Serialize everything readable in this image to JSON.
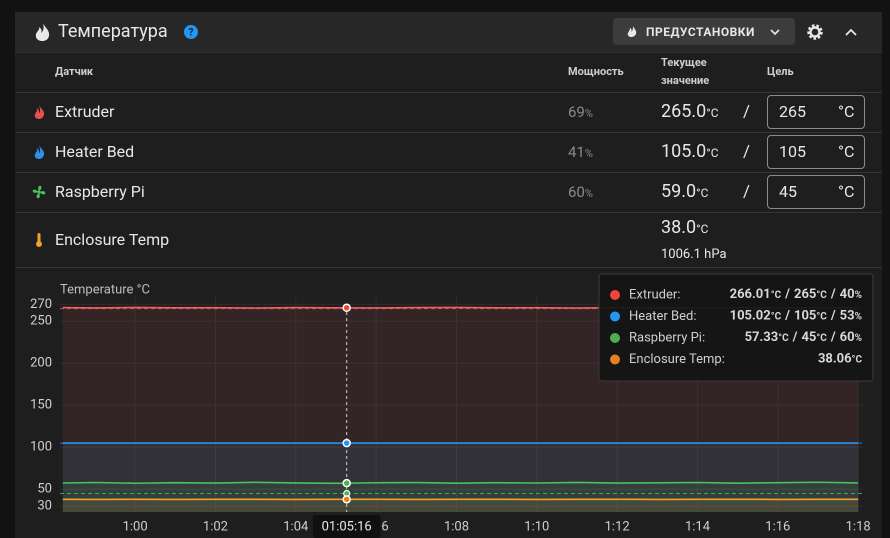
{
  "header": {
    "title": "Температура",
    "presets_button": "ПРЕДУСТАНОВКИ"
  },
  "table": {
    "columns": [
      "Датчик",
      "Мощность",
      "Текущее",
      "значение",
      "Цель"
    ],
    "separator": "/",
    "rows": [
      {
        "name": "Extruder",
        "power": "69",
        "power_unit": "%",
        "current": "265.0",
        "current_unit": "°C",
        "target": "265",
        "target_unit": "°C"
      },
      {
        "name": "Heater Bed",
        "power": "41",
        "power_unit": "%",
        "current": "105.0",
        "current_unit": "°C",
        "target": "105",
        "target_unit": "°C"
      },
      {
        "name": "Raspberry Pi",
        "power": "60",
        "power_unit": "%",
        "current": "59.0",
        "current_unit": "°C",
        "target": "45",
        "target_unit": "°C"
      },
      {
        "name": "Enclosure Temp",
        "current": "38.0",
        "current_unit": "°C",
        "pressure": "1006.1 hPa"
      }
    ]
  },
  "chart_data": {
    "type": "line",
    "y_label": "Temperature °C",
    "ylim": [
      23,
      280
    ],
    "yticks": [
      30,
      50,
      100,
      150,
      200,
      250,
      270
    ],
    "xlim": [
      58.13,
      78.12
    ],
    "xticks": [
      {
        "value": 60,
        "label": "1:00"
      },
      {
        "value": 62,
        "label": "1:02"
      },
      {
        "value": 64,
        "label": "1:04"
      },
      {
        "value": 66,
        "label": "1:06"
      },
      {
        "value": 68,
        "label": "1:08"
      },
      {
        "value": 70,
        "label": "1:10"
      },
      {
        "value": 72,
        "label": "1:12"
      },
      {
        "value": 74,
        "label": "1:14"
      },
      {
        "value": 76,
        "label": "1:16"
      },
      {
        "value": 78,
        "label": "1:18"
      }
    ],
    "grid": true,
    "x": [
      58.2,
      59,
      60,
      61,
      62,
      63,
      64,
      65,
      66,
      67,
      68,
      69,
      70,
      71,
      72,
      73,
      74,
      75,
      76,
      77,
      78
    ],
    "series": [
      {
        "name": "Extruder",
        "color": "#f0605e",
        "target": 265,
        "values": [
          266.2,
          265.8,
          266.4,
          265.9,
          266.1,
          265.7,
          266.3,
          266.0,
          265.8,
          266.2,
          266.4,
          265.9,
          266.1,
          265.6,
          266.3,
          266.0,
          265.9,
          266.2,
          265.8,
          266.1,
          266.0
        ]
      },
      {
        "name": "Heater Bed",
        "color": "#2f8fe8",
        "target": 105,
        "values": [
          105.01,
          104.98,
          105.02,
          105.0,
          104.99,
          105.03,
          105.0,
          105.02,
          104.98,
          105.01,
          105.0,
          104.99,
          105.02,
          105.0,
          105.01,
          104.98,
          105.0,
          105.02,
          104.99,
          105.01,
          105.0
        ]
      },
      {
        "name": "Raspberry Pi",
        "color": "#4cc15a",
        "target": 45,
        "values": [
          57.5,
          58.1,
          57.2,
          57.9,
          57.4,
          58.3,
          57.6,
          57.1,
          57.8,
          58.0,
          57.3,
          57.9,
          57.5,
          58.2,
          57.4,
          57.7,
          58.1,
          57.3,
          57.9,
          58.4,
          57.6
        ]
      },
      {
        "name": "Enclosure Temp",
        "color": "#f0a030",
        "values": [
          38.1,
          38.0,
          38.1,
          38.0,
          38.06,
          38.1,
          38.0,
          38.06,
          38.1,
          38.0,
          38.06,
          38.1,
          38.0,
          38.06,
          38.1,
          38.0,
          38.06,
          38.1,
          38.0,
          38.06,
          38.1
        ]
      }
    ],
    "cursor": {
      "x": 65.2667,
      "label": "01:05:16"
    },
    "tooltip": {
      "unit": "°C",
      "percent": "%",
      "separator": "/",
      "entries": [
        {
          "label": "Extruder:",
          "color": "#f44336",
          "actual": 266.01,
          "target": 265,
          "power": 40
        },
        {
          "label": "Heater Bed:",
          "color": "#2196f3",
          "actual": 105.02,
          "target": 105,
          "power": 53
        },
        {
          "label": "Raspberry Pi:",
          "color": "#4caf50",
          "actual": 57.33,
          "target": 45,
          "power": 60
        },
        {
          "label": "Enclosure Temp:",
          "color": "#e67e22",
          "actual": 38.06
        }
      ]
    }
  }
}
